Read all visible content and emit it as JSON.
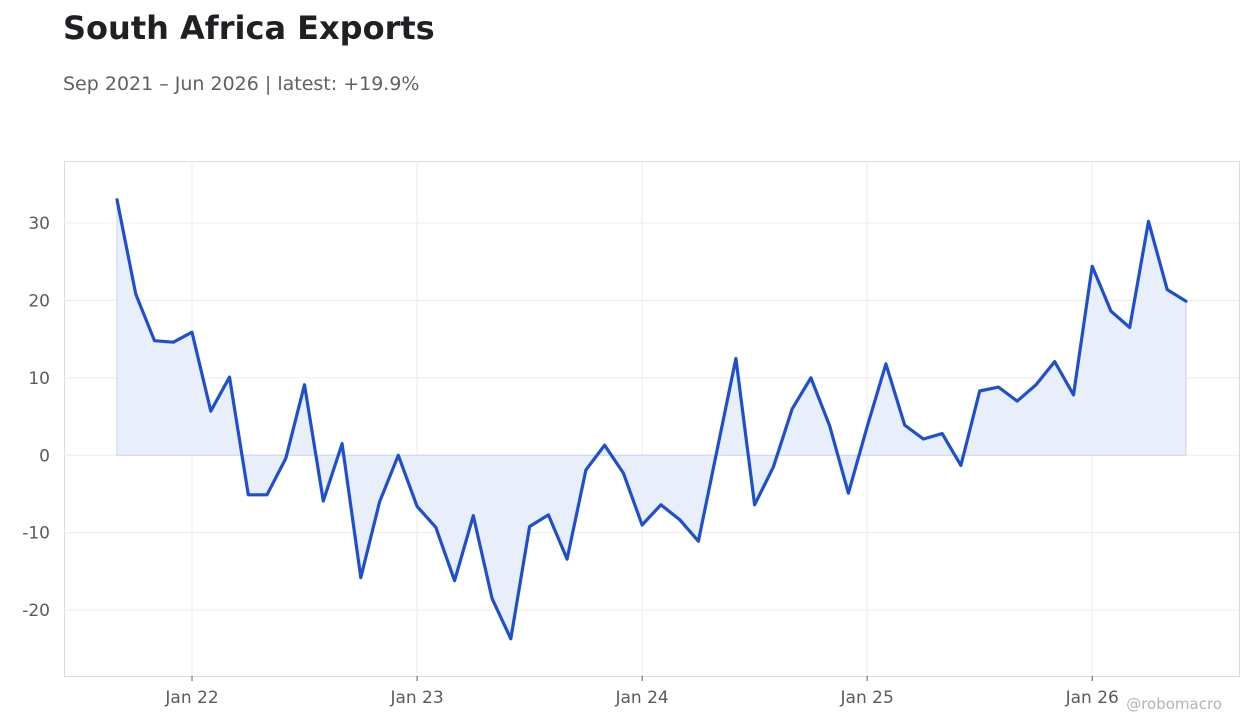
{
  "title": "South Africa Exports",
  "subtitle": "Sep 2021 – Jun 2026 | latest: +19.9%",
  "watermark": "@robomacro",
  "colors": {
    "line": "#1f4fd1",
    "fill": "#e9eefb",
    "grid": "#ececf0",
    "axis": "#dcdce0"
  },
  "chart_data": {
    "type": "area",
    "x_axis": {
      "start": "Sep 2021",
      "end": "Jun 2026",
      "ticks": [
        {
          "date": "Jan 2022",
          "label": "Jan 22"
        },
        {
          "date": "Jan 2023",
          "label": "Jan 23"
        },
        {
          "date": "Jan 2024",
          "label": "Jan 24"
        },
        {
          "date": "Jan 2025",
          "label": "Jan 25"
        },
        {
          "date": "Jan 2026",
          "label": "Jan 26"
        }
      ]
    },
    "y_axis": {
      "ylim": [
        -28.5,
        38
      ],
      "ticks": [
        30,
        20,
        10,
        0,
        -10,
        -20
      ]
    },
    "grid": true,
    "baseline": 0,
    "series": [
      {
        "x": [
          "Sep 2021",
          "Oct 2021",
          "Nov 2021",
          "Dec 2021",
          "Jan 2022",
          "Feb 2022",
          "Mar 2022",
          "Apr 2022",
          "May 2022",
          "Jun 2022",
          "Jul 2022",
          "Aug 2022",
          "Sep 2022",
          "Oct 2022",
          "Nov 2022",
          "Dec 2022",
          "Jan 2023",
          "Feb 2023",
          "Mar 2023",
          "Apr 2023",
          "May 2023",
          "Jun 2023",
          "Jul 2023",
          "Aug 2023",
          "Sep 2023",
          "Oct 2023",
          "Nov 2023",
          "Dec 2023",
          "Jan 2024",
          "Feb 2024",
          "Mar 2024",
          "Apr 2024",
          "May 2024",
          "Jun 2024",
          "Jul 2024",
          "Aug 2024",
          "Sep 2024",
          "Oct 2024",
          "Nov 2024",
          "Dec 2024",
          "Jan 2025",
          "Feb 2025",
          "Mar 2025",
          "Apr 2025",
          "May 2025",
          "Jun 2025",
          "Jul 2025",
          "Aug 2025",
          "Sep 2025",
          "Oct 2025",
          "Nov 2025",
          "Dec 2025",
          "Jan 2026",
          "Feb 2026",
          "Mar 2026",
          "Apr 2026",
          "May 2026",
          "Jun 2026"
        ],
        "values": [
          33.0,
          20.8,
          14.8,
          14.6,
          15.9,
          5.7,
          10.1,
          -5.1,
          -5.1,
          -0.4,
          9.1,
          -5.9,
          1.5,
          -15.8,
          -6.0,
          0.0,
          -6.6,
          -9.3,
          -16.2,
          -7.8,
          -18.5,
          -23.7,
          -9.2,
          -7.7,
          -13.4,
          -1.9,
          1.3,
          -2.3,
          -9.0,
          -6.4,
          -8.3,
          -11.1,
          0.7,
          12.5,
          -6.4,
          -1.5,
          6.0,
          10.0,
          3.8,
          -4.9,
          3.7,
          11.8,
          3.9,
          2.1,
          2.8,
          -1.3,
          8.3,
          8.8,
          7.0,
          9.1,
          12.1,
          7.8,
          24.4,
          18.6,
          16.5,
          30.2,
          21.4,
          19.9
        ]
      }
    ]
  }
}
